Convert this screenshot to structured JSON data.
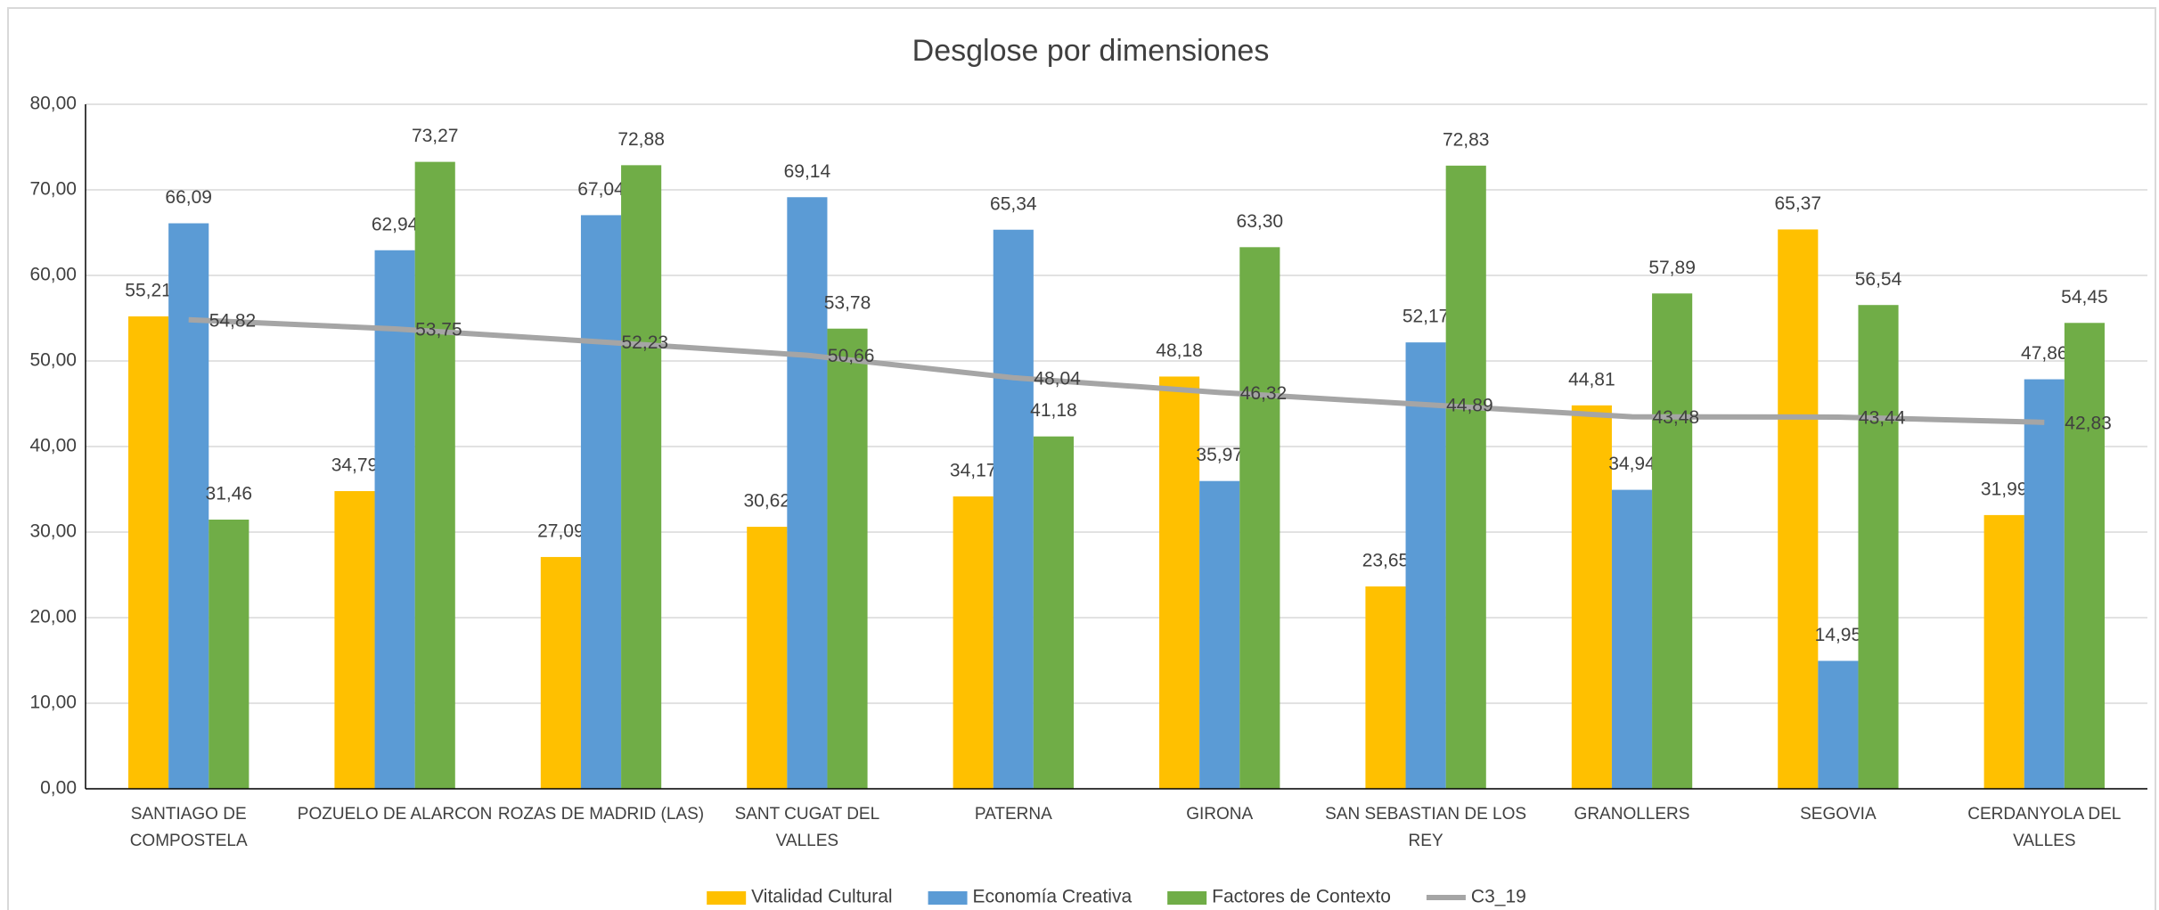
{
  "chart_data": {
    "type": "bar",
    "title": "Desglose por dimensiones",
    "categories": [
      "SANTIAGO DE COMPOSTELA",
      "POZUELO DE ALARCON",
      "ROZAS DE MADRID (LAS)",
      "SANT CUGAT DEL VALLES",
      "PATERNA",
      "GIRONA",
      "SAN SEBASTIAN DE LOS REY",
      "GRANOLLERS",
      "SEGOVIA",
      "CERDANYOLA DEL VALLES"
    ],
    "series": [
      {
        "name": "Vitalidad Cultural",
        "color": "#FFC000",
        "type": "bar",
        "values": [
          55.21,
          34.79,
          27.09,
          30.62,
          34.17,
          48.18,
          23.65,
          44.81,
          65.37,
          31.99
        ],
        "value_labels": [
          "55,21",
          "34,79",
          "27,09",
          "30,62",
          "34,17",
          "48,18",
          "23,65",
          "44,81",
          "65,37",
          "31,99"
        ]
      },
      {
        "name": "Economía Creativa",
        "color": "#5B9BD5",
        "type": "bar",
        "values": [
          66.09,
          62.94,
          67.04,
          69.14,
          65.34,
          35.97,
          52.17,
          34.94,
          14.95,
          47.86
        ],
        "value_labels": [
          "66,09",
          "62,94",
          "67,04",
          "69,14",
          "65,34",
          "35,97",
          "52,17",
          "34,94",
          "14,95",
          "47,86"
        ]
      },
      {
        "name": "Factores de Contexto",
        "color": "#70AD47",
        "type": "bar",
        "values": [
          31.46,
          73.27,
          72.88,
          53.78,
          41.18,
          63.3,
          72.83,
          57.89,
          56.54,
          54.45
        ],
        "value_labels": [
          "31,46",
          "73,27",
          "72,88",
          "53,78",
          "41,18",
          "63,30",
          "72,83",
          "57,89",
          "56,54",
          "54,45"
        ]
      },
      {
        "name": "C3_19",
        "color": "#A5A5A5",
        "type": "line",
        "values": [
          54.82,
          53.75,
          52.23,
          50.66,
          48.04,
          46.32,
          44.89,
          43.48,
          43.44,
          42.83
        ],
        "value_labels": [
          "54,82",
          "53,75",
          "52,23",
          "50,66",
          "48,04",
          "46,32",
          "44,89",
          "43,48",
          "43,44",
          "42,83"
        ]
      }
    ],
    "ylim": [
      0,
      80
    ],
    "yticks": [
      {
        "value": 0,
        "label": "0,00"
      },
      {
        "value": 10,
        "label": "10,00"
      },
      {
        "value": 20,
        "label": "20,00"
      },
      {
        "value": 30,
        "label": "30,00"
      },
      {
        "value": 40,
        "label": "40,00"
      },
      {
        "value": 50,
        "label": "50,00"
      },
      {
        "value": 60,
        "label": "60,00"
      },
      {
        "value": 70,
        "label": "70,00"
      },
      {
        "value": 80,
        "label": "80,00"
      }
    ],
    "grid": true,
    "legend": "bottom"
  }
}
